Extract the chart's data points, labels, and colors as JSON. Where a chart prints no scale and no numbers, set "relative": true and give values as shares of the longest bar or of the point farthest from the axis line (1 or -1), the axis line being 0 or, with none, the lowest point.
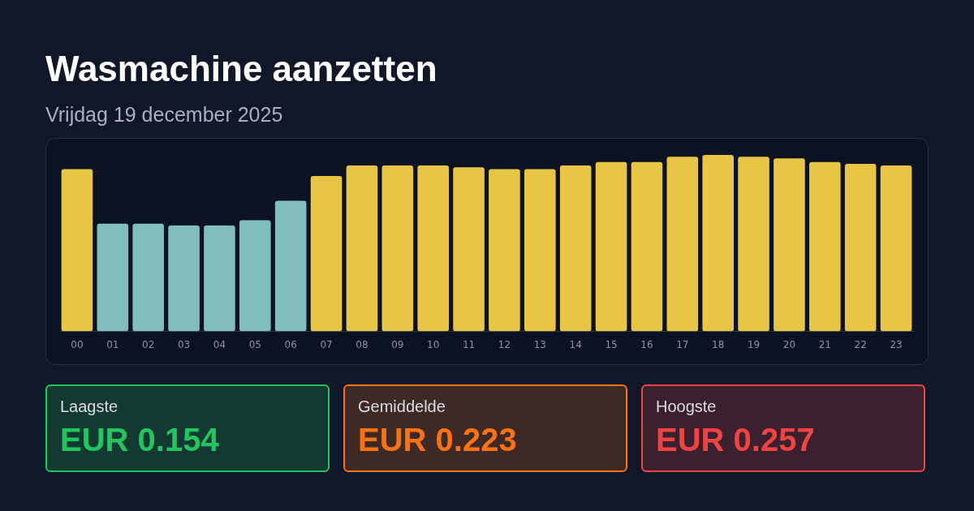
{
  "chart_data": [
    {
      "type": "bar",
      "title": "Wasmachine aanzetten",
      "subtitle": "Vrijdag 19 december 2025",
      "relative": true,
      "legend": false,
      "categories": [
        "00",
        "01",
        "02",
        "03",
        "04",
        "05",
        "06",
        "07",
        "08",
        "09",
        "10",
        "11",
        "12",
        "13",
        "14",
        "15",
        "16",
        "17",
        "18",
        "19",
        "20",
        "21",
        "22",
        "23"
      ],
      "values": [
        0.92,
        0.61,
        0.61,
        0.6,
        0.6,
        0.63,
        0.74,
        0.88,
        0.94,
        0.94,
        0.94,
        0.93,
        0.92,
        0.92,
        0.94,
        0.96,
        0.96,
        0.99,
        1,
        0.99,
        0.98,
        0.96,
        0.95,
        0.94
      ],
      "colors": [
        "#e8c547",
        "#7fbcbc",
        "#7fbcbc",
        "#7fbcbc",
        "#7fbcbc",
        "#7fbcbc",
        "#7fbcbc",
        "#e8c547",
        "#e8c547",
        "#e8c547",
        "#e8c547",
        "#e8c547",
        "#e8c547",
        "#e8c547",
        "#e8c547",
        "#e8c547",
        "#e8c547",
        "#e8c547",
        "#e8c547",
        "#e8c547",
        "#e8c547",
        "#e8c547",
        "#e8c547",
        "#e8c547"
      ]
    },
    {
      "type": "other",
      "annotations": [
        "Laagste",
        "EUR 0.154",
        "Gemiddelde",
        "EUR 0.223",
        "Hoogste",
        "EUR 0.257"
      ],
      "colors": [
        "#22c55e",
        "#f97316",
        "#ef4444"
      ]
    }
  ]
}
